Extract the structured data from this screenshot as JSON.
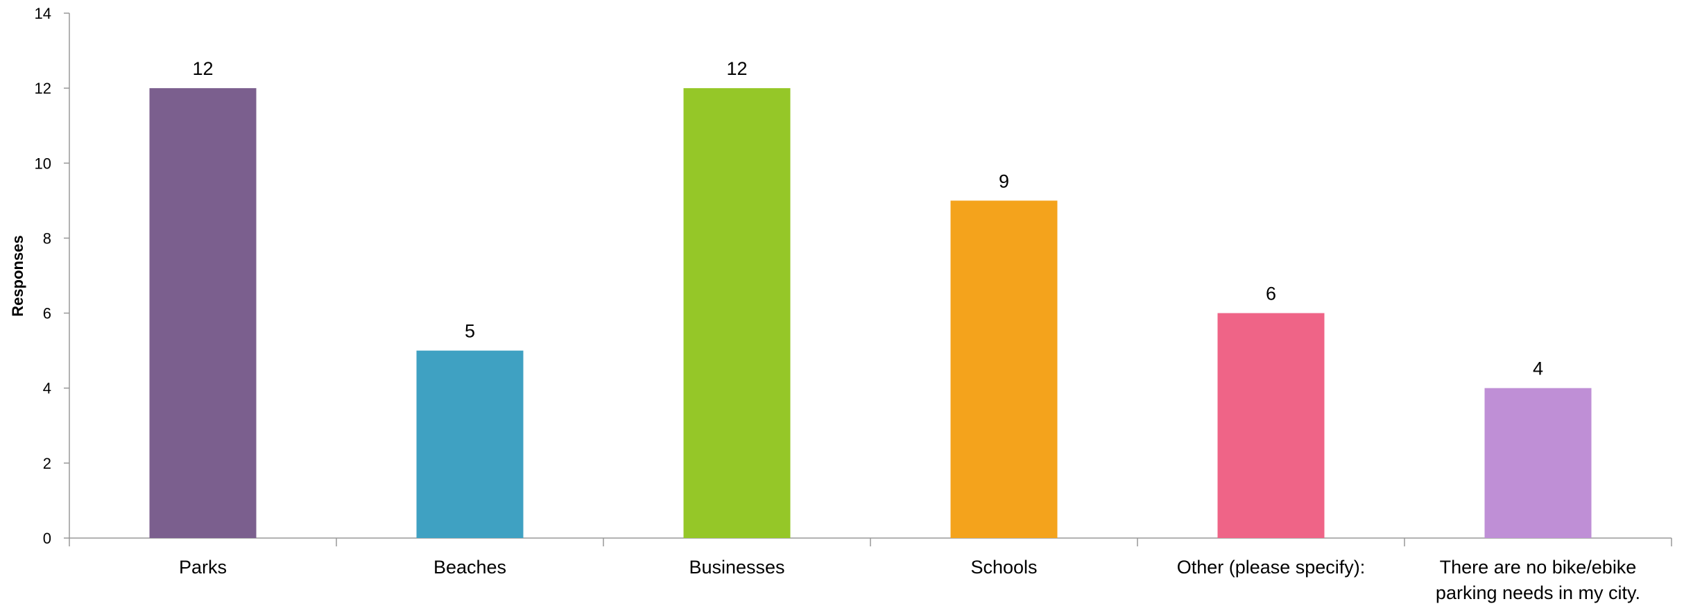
{
  "chart_data": {
    "type": "bar",
    "title": "",
    "xlabel": "",
    "ylabel": "Responses",
    "ylim": [
      0,
      14
    ],
    "yticks": [
      0,
      2,
      4,
      6,
      8,
      10,
      12,
      14
    ],
    "grid": false,
    "legend": "none",
    "categories": [
      [
        "Parks"
      ],
      [
        "Beaches"
      ],
      [
        "Businesses"
      ],
      [
        "Schools"
      ],
      [
        "Other (please specify):"
      ],
      [
        "There are no bike/ebike",
        "parking needs in my city."
      ]
    ],
    "values": [
      12,
      5,
      12,
      9,
      6,
      4
    ],
    "colors": [
      "#7b5f8e",
      "#3fa1c2",
      "#95c728",
      "#f4a31c",
      "#ef6487",
      "#bf8fd6"
    ],
    "axis_color": "#999999"
  }
}
